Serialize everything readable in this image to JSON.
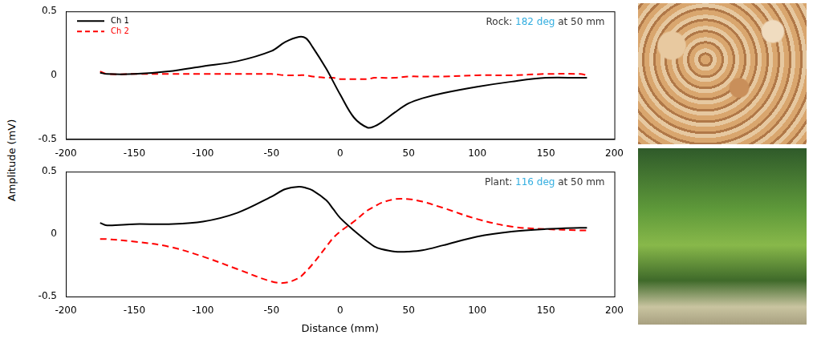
{
  "chart_data": [
    {
      "type": "line",
      "annotation": {
        "prefix": "Rock:",
        "highlight": "182 deg",
        "suffix": "at 50 mm"
      },
      "ylabel": "Amplitude (mV)",
      "x": [
        -175,
        -170,
        -150,
        -125,
        -100,
        -75,
        -50,
        -40,
        -30,
        -25,
        -20,
        -10,
        -5,
        0,
        10,
        20,
        25,
        30,
        40,
        50,
        60,
        75,
        100,
        125,
        150,
        175,
        180
      ],
      "series": [
        {
          "name": "Ch 1",
          "color": "#000000",
          "line_style": "solid",
          "values": [
            0.02,
            0.01,
            0.01,
            0.03,
            0.07,
            0.11,
            0.19,
            0.26,
            0.3,
            0.29,
            0.22,
            0.05,
            -0.05,
            -0.15,
            -0.33,
            -0.41,
            -0.4,
            -0.37,
            -0.29,
            -0.22,
            -0.18,
            -0.14,
            -0.09,
            -0.05,
            -0.02,
            -0.02,
            -0.02
          ]
        },
        {
          "name": "Ch 2",
          "color": "#ff0000",
          "line_style": "dashed",
          "values": [
            0.03,
            0.01,
            0.01,
            0.01,
            0.01,
            0.01,
            0.01,
            0.0,
            0.0,
            0.0,
            -0.01,
            -0.02,
            -0.02,
            -0.03,
            -0.03,
            -0.03,
            -0.02,
            -0.02,
            -0.02,
            -0.01,
            -0.01,
            -0.01,
            0.0,
            0.0,
            0.01,
            0.01,
            0.0
          ]
        }
      ],
      "xlim": [
        -200,
        200
      ],
      "xticks": [
        -200,
        -150,
        -100,
        -50,
        0,
        50,
        100,
        150,
        200
      ],
      "ylim": [
        -0.5,
        0.5
      ],
      "yticks": [
        -0.5,
        0,
        0.5
      ],
      "grid": false,
      "legend": "upper left"
    },
    {
      "type": "line",
      "annotation": {
        "prefix": "Plant:",
        "highlight": "116 deg",
        "suffix": "at 50 mm"
      },
      "xlabel": "Distance (mm)",
      "x": [
        -175,
        -170,
        -150,
        -125,
        -100,
        -75,
        -50,
        -40,
        -30,
        -25,
        -20,
        -10,
        -5,
        0,
        10,
        20,
        25,
        30,
        40,
        50,
        60,
        75,
        100,
        125,
        150,
        175,
        180
      ],
      "series": [
        {
          "name": "Ch 1",
          "color": "#000000",
          "line_style": "solid",
          "values": [
            0.09,
            0.07,
            0.08,
            0.08,
            0.1,
            0.17,
            0.3,
            0.36,
            0.38,
            0.37,
            0.35,
            0.27,
            0.2,
            0.13,
            0.03,
            -0.06,
            -0.1,
            -0.12,
            -0.14,
            -0.14,
            -0.13,
            -0.09,
            -0.02,
            0.02,
            0.04,
            0.05,
            0.05
          ]
        },
        {
          "name": "Ch 2",
          "color": "#ff0000",
          "line_style": "dashed",
          "values": [
            -0.04,
            -0.04,
            -0.06,
            -0.1,
            -0.18,
            -0.28,
            -0.38,
            -0.39,
            -0.35,
            -0.3,
            -0.24,
            -0.1,
            -0.03,
            0.02,
            0.1,
            0.19,
            0.22,
            0.25,
            0.28,
            0.28,
            0.26,
            0.21,
            0.12,
            0.06,
            0.04,
            0.03,
            0.03
          ]
        }
      ],
      "xlim": [
        -200,
        200
      ],
      "xticks": [
        -200,
        -150,
        -100,
        -50,
        0,
        50,
        100,
        150,
        200
      ],
      "ylim": [
        -0.5,
        0.5
      ],
      "yticks": [
        -0.5,
        0,
        0.5
      ],
      "grid": false
    }
  ]
}
